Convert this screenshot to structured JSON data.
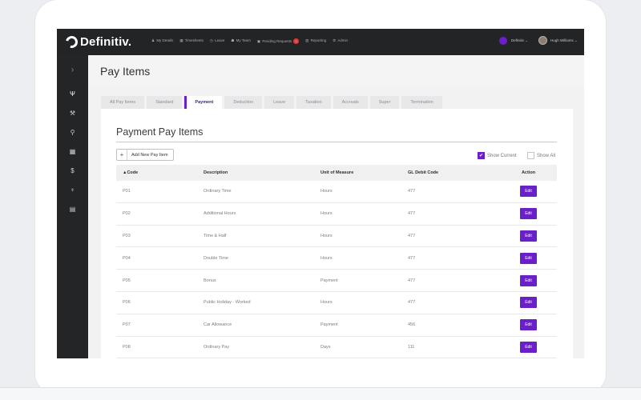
{
  "app": {
    "logo_text": "Definitiv."
  },
  "topnav": [
    {
      "icon": "person-icon",
      "glyph": "♟",
      "label": "My Details"
    },
    {
      "icon": "timesheet-icon",
      "glyph": "▦",
      "label": "Timesheets"
    },
    {
      "icon": "clock-icon",
      "glyph": "◷",
      "label": "Leave"
    },
    {
      "icon": "team-icon",
      "glyph": "☗",
      "label": "My Team"
    },
    {
      "icon": "inbox-icon",
      "glyph": "▣",
      "label": "Pending Requests",
      "badge": "5"
    },
    {
      "icon": "chart-icon",
      "glyph": "▥",
      "label": "Reporting"
    },
    {
      "icon": "gear-icon",
      "glyph": "⚙",
      "label": "Admin"
    }
  ],
  "brand_selector": {
    "label": "Definitiv ⌄"
  },
  "user": {
    "name": "Hugh Williams ⌄"
  },
  "sidebar": [
    {
      "icon": "expand-icon",
      "glyph": "›"
    },
    {
      "icon": "fork-icon",
      "glyph": "Ψ"
    },
    {
      "icon": "tools-icon",
      "glyph": "⚒"
    },
    {
      "icon": "pin-icon",
      "glyph": "⚲"
    },
    {
      "icon": "calendar-icon",
      "glyph": "▦"
    },
    {
      "icon": "dollar-icon",
      "glyph": "$"
    },
    {
      "icon": "microphone-icon",
      "glyph": "♆"
    },
    {
      "icon": "document-icon",
      "glyph": "▤"
    }
  ],
  "page": {
    "title": "Pay Items"
  },
  "tabs": [
    "All Pay Items",
    "Standard",
    "Payment",
    "Deduction",
    "Leave",
    "Taxation",
    "Accruals",
    "Super",
    "Termination"
  ],
  "active_tab": "Payment",
  "section": {
    "title": "Payment Pay Items",
    "add_button": "Add New Pay Item",
    "add_symbol": "+",
    "show_current": "Show Current",
    "show_all": "Show All"
  },
  "table": {
    "headers": [
      "▲Code",
      "Description",
      "Unit of Measure",
      "GL Debit Code",
      "Action"
    ],
    "rows": [
      {
        "code": "P01",
        "description": "Ordinary Time",
        "unit": "Hours",
        "gl": "477",
        "action": "Edit"
      },
      {
        "code": "P02",
        "description": "Additional Hours",
        "unit": "Hours",
        "gl": "477",
        "action": "Edit"
      },
      {
        "code": "P03",
        "description": "Time & Half",
        "unit": "Hours",
        "gl": "477",
        "action": "Edit"
      },
      {
        "code": "P04",
        "description": "Double Time",
        "unit": "Hours",
        "gl": "477",
        "action": "Edit"
      },
      {
        "code": "P05",
        "description": "Bonus",
        "unit": "Payment",
        "gl": "477",
        "action": "Edit"
      },
      {
        "code": "P06",
        "description": "Public Holiday - Worked",
        "unit": "Hours",
        "gl": "477",
        "action": "Edit"
      },
      {
        "code": "P07",
        "description": "Car Allowance",
        "unit": "Payment",
        "gl": "456",
        "action": "Edit"
      },
      {
        "code": "P08",
        "description": "Ordinary Pay",
        "unit": "Days",
        "gl": "111",
        "action": "Edit"
      }
    ]
  },
  "colors": {
    "accent": "#6a1fc9",
    "topbar": "#232426",
    "sidebar": "#242527",
    "badge": "#e23a3a"
  }
}
